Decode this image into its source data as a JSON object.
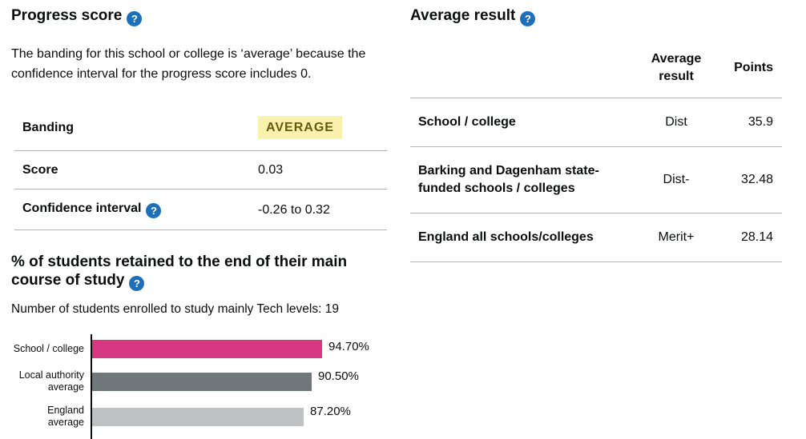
{
  "colors": {
    "text": "#0b0c0c",
    "help_blue": "#1d70b8",
    "border": "#b1b4b6",
    "badge_bg": "#faf1ae",
    "badge_text": "#635a0e"
  },
  "icons": {
    "help_glyph": "?"
  },
  "progress_score": {
    "title": "Progress score",
    "description": "The banding for this school or college is ‘average’ because the confidence interval for the progress score includes 0.",
    "rows": [
      {
        "label": "Banding",
        "value": "AVERAGE"
      },
      {
        "label": "Score",
        "value": "0.03"
      },
      {
        "label": "Confidence interval",
        "value": "-0.26 to 0.32"
      }
    ]
  },
  "retention": {
    "title": "% of students retained to the end of their main course of study",
    "subtitle": "Number of students enrolled to study mainly Tech levels: 19",
    "chart_data": {
      "type": "bar",
      "orientation": "horizontal",
      "categories": [
        "School / college",
        "Local authority average",
        "England average"
      ],
      "values": [
        94.7,
        90.5,
        87.2
      ],
      "value_labels": [
        "94.70%",
        "90.50%",
        "87.20%"
      ],
      "bar_colors": [
        "#d53880",
        "#6f777b",
        "#bfc1c3"
      ],
      "xlim": [
        0,
        100
      ],
      "grid": false,
      "legend": false
    }
  },
  "average_result": {
    "title": "Average result",
    "columns": {
      "grade": "Average result",
      "points": "Points"
    },
    "rows": [
      {
        "label": "School / college",
        "grade": "Dist",
        "points": "35.9"
      },
      {
        "label": "Barking and Dagenham state-funded schools / colleges",
        "grade": "Dist-",
        "points": "32.48"
      },
      {
        "label": "England all schools/colleges",
        "grade": "Merit+",
        "points": "28.14"
      }
    ]
  }
}
